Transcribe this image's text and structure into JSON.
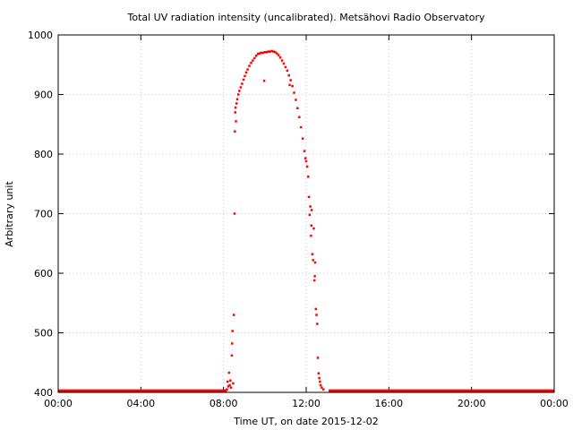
{
  "chart_data": {
    "type": "scatter",
    "title": "Total UV radiation intensity (uncalibrated). Metsähovi Radio Observatory",
    "xlabel": "Time UT, on date 2015-12-02",
    "ylabel": "Arbitrary unit",
    "xlim": [
      "00:00",
      "24:00"
    ],
    "ylim": [
      400,
      1000
    ],
    "x_ticks": [
      "00:00",
      "04:00",
      "08:00",
      "12:00",
      "16:00",
      "20:00",
      "00:00"
    ],
    "y_ticks": [
      400,
      500,
      600,
      700,
      800,
      900,
      1000
    ],
    "grid": true,
    "series_color": "#ff0000",
    "baseline_value": 402,
    "baseline_segments": [
      [
        "00:00",
        "08:10"
      ],
      [
        "13:05",
        "24:00"
      ]
    ],
    "series": [
      {
        "points": [
          [
            "08:10",
            405
          ],
          [
            "08:12",
            418
          ],
          [
            "08:14",
            410
          ],
          [
            "08:16",
            433
          ],
          [
            "08:18",
            412
          ],
          [
            "08:20",
            420
          ],
          [
            "08:22",
            408
          ],
          [
            "08:24",
            462
          ],
          [
            "08:25",
            482
          ],
          [
            "08:26",
            503
          ],
          [
            "08:28",
            415
          ],
          [
            "08:30",
            530
          ],
          [
            "08:32",
            700
          ],
          [
            "08:33",
            838
          ],
          [
            "08:34",
            870
          ],
          [
            "08:35",
            878
          ],
          [
            "08:36",
            855
          ],
          [
            "08:38",
            885
          ],
          [
            "08:40",
            892
          ],
          [
            "08:43",
            900
          ],
          [
            "08:46",
            906
          ],
          [
            "08:50",
            912
          ],
          [
            "08:54",
            918
          ],
          [
            "08:58",
            925
          ],
          [
            "09:02",
            931
          ],
          [
            "09:06",
            937
          ],
          [
            "09:10",
            942
          ],
          [
            "09:15",
            948
          ],
          [
            "09:20",
            953
          ],
          [
            "09:25",
            957
          ],
          [
            "09:30",
            961
          ],
          [
            "09:35",
            965
          ],
          [
            "09:40",
            968
          ],
          [
            "09:45",
            969
          ],
          [
            "09:50",
            970
          ],
          [
            "09:55",
            970
          ],
          [
            "09:58",
            923
          ],
          [
            "10:00",
            971
          ],
          [
            "10:05",
            971
          ],
          [
            "10:10",
            972
          ],
          [
            "10:15",
            972
          ],
          [
            "10:20",
            973
          ],
          [
            "10:25",
            972
          ],
          [
            "10:30",
            971
          ],
          [
            "10:35",
            969
          ],
          [
            "10:40",
            966
          ],
          [
            "10:45",
            962
          ],
          [
            "10:50",
            957
          ],
          [
            "10:55",
            952
          ],
          [
            "11:00",
            946
          ],
          [
            "11:05",
            940
          ],
          [
            "11:10",
            932
          ],
          [
            "11:12",
            916
          ],
          [
            "11:15",
            924
          ],
          [
            "11:20",
            914
          ],
          [
            "11:25",
            903
          ],
          [
            "11:30",
            891
          ],
          [
            "11:35",
            877
          ],
          [
            "11:40",
            862
          ],
          [
            "11:45",
            845
          ],
          [
            "11:50",
            826
          ],
          [
            "11:55",
            805
          ],
          [
            "11:58",
            793
          ],
          [
            "12:00",
            788
          ],
          [
            "12:03",
            779
          ],
          [
            "12:06",
            762
          ],
          [
            "12:08",
            728
          ],
          [
            "12:10",
            698
          ],
          [
            "12:12",
            712
          ],
          [
            "12:14",
            663
          ],
          [
            "12:15",
            680
          ],
          [
            "12:16",
            706
          ],
          [
            "12:18",
            632
          ],
          [
            "12:20",
            622
          ],
          [
            "12:22",
            675
          ],
          [
            "12:24",
            588
          ],
          [
            "12:25",
            595
          ],
          [
            "12:26",
            618
          ],
          [
            "12:28",
            540
          ],
          [
            "12:30",
            530
          ],
          [
            "12:32",
            515
          ],
          [
            "12:34",
            458
          ],
          [
            "12:36",
            432
          ],
          [
            "12:38",
            424
          ],
          [
            "12:40",
            418
          ],
          [
            "12:42",
            412
          ],
          [
            "12:45",
            408
          ],
          [
            "12:50",
            405
          ]
        ]
      }
    ]
  }
}
